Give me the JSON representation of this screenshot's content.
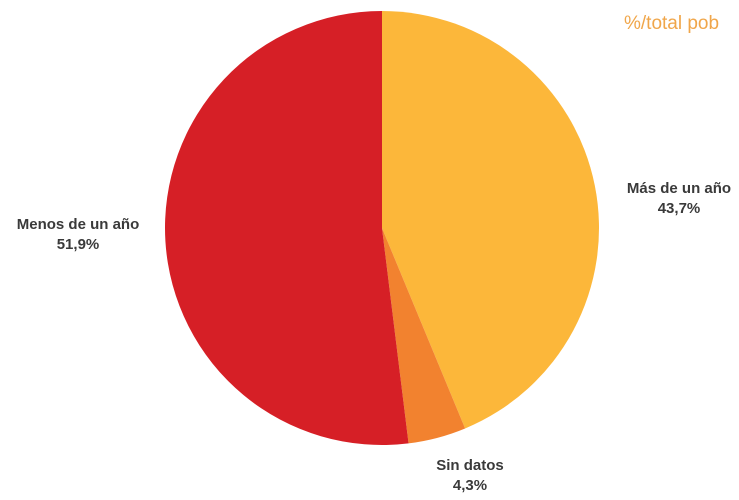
{
  "header": {
    "corner_note": "%/total pob"
  },
  "chart_data": {
    "type": "pie",
    "title": "",
    "start_angle_deg": 0,
    "direction": "clockwise",
    "slices": [
      {
        "label": "Más de un año",
        "value": 43.7,
        "value_label": "43,7%",
        "color": "#fcb73a"
      },
      {
        "label": "Sin datos",
        "value": 4.3,
        "value_label": "4,3%",
        "color": "#f2822f"
      },
      {
        "label": "Menos de un año",
        "value": 51.9,
        "value_label": "51,9%",
        "color": "#d61f26"
      }
    ]
  }
}
